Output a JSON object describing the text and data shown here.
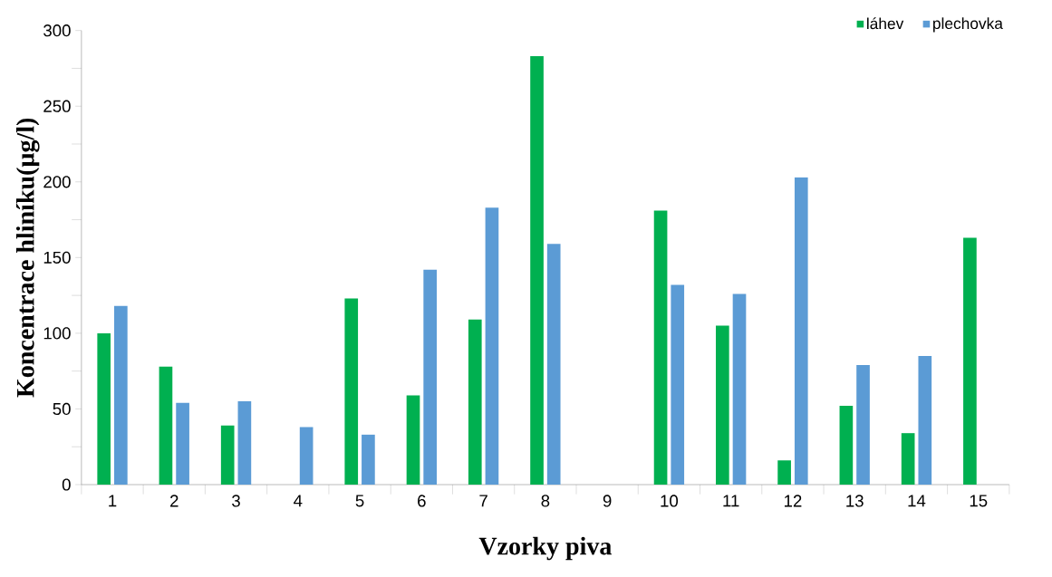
{
  "chart_data": {
    "type": "bar",
    "xlabel": "Vzorky piva",
    "ylabel": "Koncentrace hliníku(µg/l)",
    "categories": [
      "1",
      "2",
      "3",
      "4",
      "5",
      "6",
      "7",
      "8",
      "9",
      "10",
      "11",
      "12",
      "13",
      "14",
      "15"
    ],
    "series": [
      {
        "name": "láhev",
        "color": "#00b050",
        "values": [
          100,
          78,
          39,
          null,
          123,
          59,
          109,
          283,
          null,
          181,
          105,
          16,
          52,
          34,
          163
        ]
      },
      {
        "name": "plechovka",
        "color": "#5b9bd5",
        "values": [
          118,
          54,
          55,
          38,
          33,
          142,
          183,
          159,
          null,
          132,
          126,
          203,
          79,
          85,
          null
        ]
      }
    ],
    "ylim": [
      0,
      300
    ],
    "yticks": [
      0,
      50,
      100,
      150,
      200,
      250,
      300
    ],
    "legend": "top right"
  }
}
